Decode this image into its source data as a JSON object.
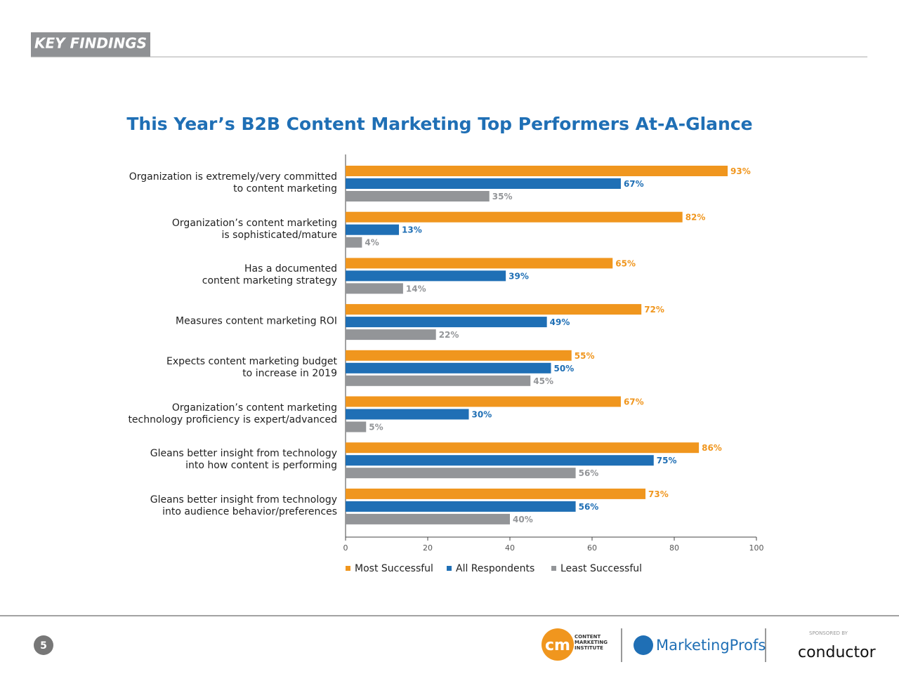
{
  "header": {
    "title": "KEY FINDINGS"
  },
  "chart_data": {
    "type": "bar",
    "orientation": "horizontal",
    "title": "This Year’s B2B Content Marketing Top Performers At-A-Glance",
    "categories": [
      "Organization is extremely/very committed\nto content marketing",
      "Organization’s content marketing\nis sophisticated/mature",
      "Has a documented\ncontent marketing strategy",
      "Measures content marketing ROI",
      "Expects content marketing budget\nto increase in 2019",
      "Organization’s content marketing\ntechnology proficiency is expert/advanced",
      "Gleans better insight from technology\ninto how content is performing",
      "Gleans better insight from technology\ninto audience behavior/preferences"
    ],
    "series": [
      {
        "name": "Most Successful",
        "color": "#f0961e",
        "values": [
          93,
          82,
          65,
          72,
          55,
          67,
          86,
          73
        ],
        "value_labels": [
          "93%",
          "82%",
          "65%",
          "72%",
          "55%",
          "67%",
          "86%",
          "73%"
        ]
      },
      {
        "name": "All Respondents",
        "color": "#1f6fb5",
        "values": [
          67,
          13,
          39,
          49,
          50,
          30,
          75,
          56
        ],
        "value_labels": [
          "67%",
          "13%",
          "39%",
          "49%",
          "50%",
          "30%",
          "75%",
          "56%"
        ]
      },
      {
        "name": "Least Successful",
        "color": "#939598",
        "values": [
          35,
          4,
          14,
          22,
          45,
          5,
          56,
          40
        ],
        "value_labels": [
          "35%",
          "4%",
          "14%",
          "22%",
          "45%",
          "5%",
          "56%",
          "40%"
        ]
      }
    ],
    "xlim": [
      0,
      100
    ],
    "xticks": [
      0,
      20,
      40,
      60,
      80,
      100
    ],
    "legend": "bottom"
  },
  "footer": {
    "page_number": "5",
    "cmi_mark": "cm",
    "cmi_name": "CONTENT\nMARKETING\nINSTITUTE",
    "marketingprofs": "MarketingProfs",
    "sponsored_by": "SPONSORED BY",
    "conductor": "conductor"
  }
}
